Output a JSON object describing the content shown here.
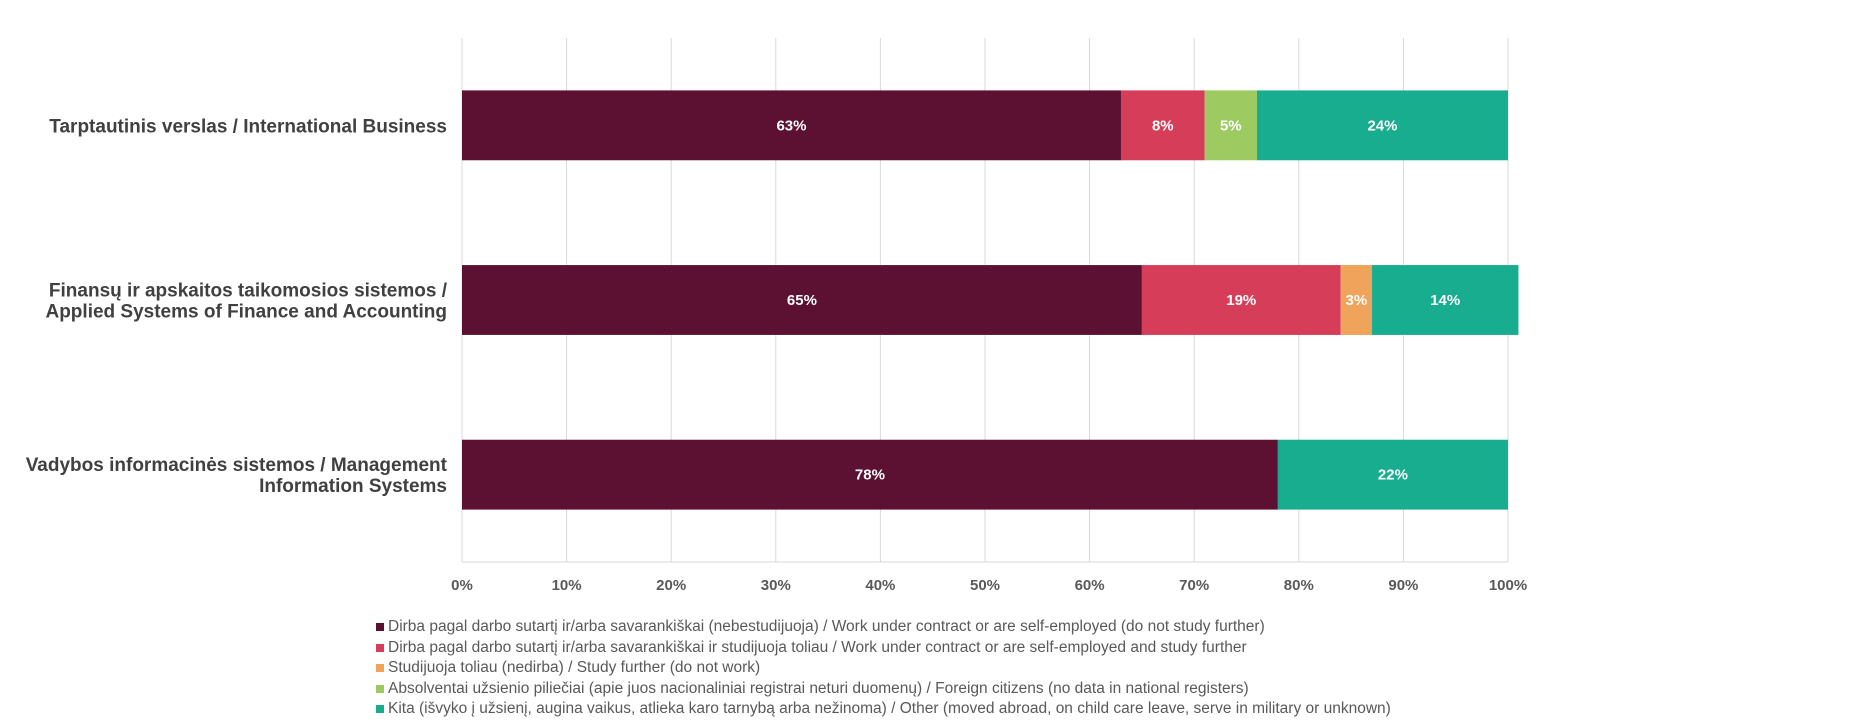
{
  "chart_data": {
    "type": "bar",
    "orientation": "horizontal",
    "stacked": "percent",
    "categories": [
      [
        "Tarptautinis verslas / International Business"
      ],
      [
        "Finansų ir apskaitos taikomosios sistemos /",
        "Applied Systems of Finance and Accounting"
      ],
      [
        "Vadybos informacinės sistemos / Management",
        "Information Systems"
      ]
    ],
    "series": [
      {
        "name": "Dirba pagal darbo sutartį ir/arba savarankiškai (nebestudijuoja) / Work under contract or are self-employed (do not study further)",
        "color": "#5c1133",
        "values": [
          63,
          65,
          78
        ]
      },
      {
        "name": "Dirba pagal darbo sutartį ir/arba savarankiškai  ir studijuoja toliau / Work under contract or are self-employed and study further",
        "color": "#d53d58",
        "values": [
          8,
          19,
          0
        ]
      },
      {
        "name": "Studijuoja toliau (nedirba) / Study further (do not work)",
        "color": "#f0a35a",
        "values": [
          0,
          3,
          0
        ]
      },
      {
        "name": "Absolventai užsienio piliečiai (apie juos nacionaliniai registrai neturi duomenų) / Foreign citizens (no data in national registers)",
        "color": "#9dcb62",
        "values": [
          5,
          0,
          0
        ]
      },
      {
        "name": "Kita (išvyko į užsienį, augina vaikus, atlieka karo tarnybą arba nežinoma) / Other (moved abroad, on child care leave, serve in military or unknown)",
        "color": "#17ad8e",
        "values": [
          24,
          14,
          22
        ]
      }
    ],
    "data_labels": [
      [
        "63%",
        "65%",
        "78%"
      ],
      [
        "8%",
        "19%",
        ""
      ],
      [
        "",
        "3%",
        ""
      ],
      [
        "5%",
        "",
        ""
      ],
      [
        "24%",
        "14%",
        "22%"
      ]
    ],
    "xlim": [
      0,
      100
    ],
    "x_ticks": [
      "0%",
      "10%",
      "20%",
      "30%",
      "40%",
      "50%",
      "60%",
      "70%",
      "80%",
      "90%",
      "100%"
    ],
    "grid": true,
    "legend_position": "bottom-left"
  }
}
